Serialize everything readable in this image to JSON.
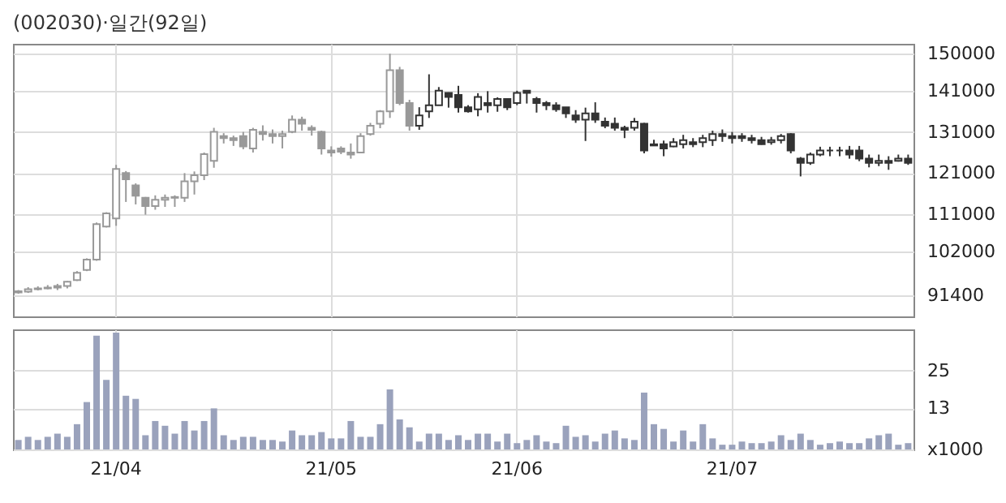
{
  "chart_data": [
    {
      "type": "candlestick",
      "title": "(002030)·일간(92일)",
      "categories": [
        null,
        null,
        null,
        null,
        null,
        null,
        null,
        null,
        null,
        null,
        null,
        null,
        null,
        null,
        null,
        null,
        null,
        null,
        null,
        null,
        null,
        null,
        null,
        null,
        null,
        null,
        null,
        null,
        null,
        null,
        null,
        null,
        null,
        null,
        null,
        null,
        null,
        null,
        null,
        null,
        null,
        null,
        null,
        null,
        null,
        null,
        null,
        null,
        null,
        null,
        null,
        null,
        null,
        null,
        null,
        null,
        null,
        null,
        null,
        null,
        null,
        null,
        null,
        null,
        null,
        null,
        null,
        null,
        null,
        null,
        null,
        null,
        null,
        null,
        null,
        null,
        null,
        null,
        null,
        null,
        null,
        null,
        null,
        null,
        null,
        null,
        null,
        null,
        null,
        null,
        null,
        null
      ],
      "ohlc": [
        [
          92000,
          92600,
          91700,
          92300
        ],
        [
          92200,
          93300,
          91900,
          92800
        ],
        [
          92800,
          93500,
          92500,
          93000
        ],
        [
          93000,
          93800,
          92800,
          93200
        ],
        [
          93200,
          94100,
          92600,
          93600
        ],
        [
          93600,
          94800,
          93000,
          94600
        ],
        [
          95000,
          97200,
          94800,
          96800
        ],
        [
          97500,
          100300,
          97200,
          100000
        ],
        [
          100000,
          109000,
          99700,
          108600
        ],
        [
          108000,
          111500,
          107800,
          111200
        ],
        [
          110000,
          123000,
          108200,
          122000
        ],
        [
          121000,
          121500,
          114000,
          119500
        ],
        [
          118000,
          118500,
          113400,
          115500
        ],
        [
          115000,
          115200,
          110900,
          113000
        ],
        [
          113000,
          115600,
          112100,
          114500
        ],
        [
          114500,
          115800,
          112800,
          115000
        ],
        [
          115000,
          115600,
          112800,
          115200
        ],
        [
          115000,
          121000,
          114000,
          119000
        ],
        [
          119000,
          121400,
          115800,
          120500
        ],
        [
          120500,
          126000,
          119300,
          125600
        ],
        [
          124000,
          132000,
          122300,
          131000
        ],
        [
          130000,
          130700,
          128200,
          129500
        ],
        [
          129500,
          130100,
          127600,
          129000
        ],
        [
          130000,
          131000,
          126800,
          127500
        ],
        [
          127000,
          132000,
          126000,
          131500
        ],
        [
          131000,
          132600,
          128900,
          130500
        ],
        [
          130500,
          131600,
          128200,
          130000
        ],
        [
          130000,
          131300,
          127000,
          130500
        ],
        [
          131000,
          135000,
          130700,
          134000
        ],
        [
          134000,
          134700,
          131300,
          133000
        ],
        [
          132000,
          132600,
          130100,
          131500
        ],
        [
          131000,
          131300,
          125500,
          127000
        ],
        [
          126500,
          127500,
          125000,
          126000
        ],
        [
          127000,
          127500,
          125600,
          126200
        ],
        [
          126000,
          128200,
          124500,
          125500
        ],
        [
          126000,
          130700,
          126000,
          130000
        ],
        [
          130500,
          133200,
          130100,
          132500
        ],
        [
          133000,
          136300,
          131900,
          136000
        ],
        [
          136000,
          150000,
          134400,
          146000
        ],
        [
          146000,
          146800,
          137500,
          138000
        ],
        [
          138000,
          138800,
          131300,
          132500
        ],
        [
          132500,
          137000,
          131500,
          135000
        ],
        [
          136000,
          145000,
          134400,
          137500
        ],
        [
          137500,
          141900,
          137500,
          141000
        ],
        [
          140500,
          140600,
          136900,
          139500
        ],
        [
          140000,
          142200,
          135700,
          137000
        ],
        [
          137000,
          137500,
          135700,
          136000
        ],
        [
          136500,
          140400,
          134800,
          139500
        ],
        [
          138000,
          140900,
          135700,
          137500
        ],
        [
          137500,
          139400,
          135900,
          139000
        ],
        [
          139000,
          139100,
          136300,
          137000
        ],
        [
          138000,
          141000,
          137500,
          140500
        ],
        [
          141000,
          141000,
          137900,
          140500
        ],
        [
          139000,
          139500,
          135700,
          138000
        ],
        [
          138000,
          138500,
          136300,
          137500
        ],
        [
          137500,
          138200,
          135900,
          136500
        ],
        [
          137000,
          137000,
          134400,
          135500
        ],
        [
          135000,
          136300,
          133200,
          134000
        ],
        [
          134000,
          136900,
          128800,
          135500
        ],
        [
          135500,
          138200,
          133200,
          134000
        ],
        [
          133500,
          134500,
          131900,
          132500
        ],
        [
          133000,
          134500,
          131300,
          132000
        ],
        [
          132000,
          132500,
          129500,
          131500
        ],
        [
          132000,
          134400,
          131300,
          133500
        ],
        [
          133000,
          133200,
          125800,
          126500
        ],
        [
          127700,
          129100,
          127600,
          128000
        ],
        [
          128000,
          128900,
          125100,
          127000
        ],
        [
          127500,
          129500,
          127300,
          128500
        ],
        [
          128000,
          130300,
          127000,
          129000
        ],
        [
          128500,
          129500,
          127300,
          128000
        ],
        [
          128500,
          130300,
          127300,
          129500
        ],
        [
          129000,
          131300,
          127600,
          130500
        ],
        [
          130500,
          131600,
          128600,
          130000
        ],
        [
          130000,
          131000,
          128200,
          129500
        ],
        [
          130000,
          130700,
          128600,
          129500
        ],
        [
          129500,
          130300,
          128200,
          129000
        ],
        [
          129000,
          129800,
          127900,
          128000
        ],
        [
          128500,
          129800,
          127900,
          129000
        ],
        [
          129000,
          130500,
          128200,
          130000
        ],
        [
          130500,
          130700,
          125800,
          126500
        ],
        [
          124500,
          124900,
          120200,
          123500
        ],
        [
          123500,
          126000,
          123000,
          125500
        ],
        [
          125500,
          127400,
          125100,
          126500
        ],
        [
          126500,
          127400,
          125100,
          126500
        ],
        [
          126500,
          127400,
          125100,
          126500
        ],
        [
          126500,
          127600,
          124500,
          125500
        ],
        [
          126500,
          127600,
          123900,
          124500
        ],
        [
          124500,
          125500,
          122400,
          123500
        ],
        [
          123500,
          125500,
          122700,
          124000
        ],
        [
          124000,
          125100,
          121800,
          123500
        ],
        [
          124000,
          125500,
          123800,
          124500
        ],
        [
          124500,
          125500,
          123000,
          123500
        ]
      ],
      "colors": [
        "#999999",
        "#999999",
        "#999999",
        "#999999",
        "#999999",
        "#999999",
        "#999999",
        "#999999",
        "#999999",
        "#999999",
        "#999999",
        "#999999",
        "#999999",
        "#999999",
        "#999999",
        "#999999",
        "#999999",
        "#999999",
        "#999999",
        "#999999",
        "#999999",
        "#999999",
        "#999999",
        "#999999",
        "#999999",
        "#999999",
        "#999999",
        "#999999",
        "#999999",
        "#999999",
        "#999999",
        "#999999",
        "#999999",
        "#999999",
        "#999999",
        "#999999",
        "#999999",
        "#999999",
        "#999999",
        "#999999",
        "#999999",
        "#333333",
        "#333333",
        "#333333",
        "#333333",
        "#333333",
        "#333333",
        "#333333",
        "#333333",
        "#333333",
        "#333333",
        "#333333",
        "#333333",
        "#333333",
        "#333333",
        "#333333",
        "#333333",
        "#333333",
        "#333333",
        "#333333",
        "#333333",
        "#333333",
        "#333333",
        "#333333",
        "#333333",
        "#333333",
        "#333333",
        "#333333",
        "#333333",
        "#333333",
        "#333333",
        "#333333",
        "#333333",
        "#333333",
        "#333333",
        "#333333",
        "#333333",
        "#333333",
        "#333333",
        "#333333",
        "#333333",
        "#333333",
        "#333333",
        "#333333",
        "#333333",
        "#333333",
        "#333333",
        "#333333",
        "#333333",
        "#333333",
        "#333333",
        "#333333"
      ],
      "ylim": [
        86200,
        152400
      ],
      "yticks": [
        91400,
        102000,
        111000,
        121000,
        131000,
        141000,
        150000
      ],
      "grid": true,
      "tick_labels": "y"
    },
    {
      "type": "bar",
      "categories": [
        null,
        null,
        null,
        null,
        null,
        null,
        null,
        null,
        null,
        null,
        "21/04",
        null,
        null,
        null,
        null,
        null,
        null,
        null,
        null,
        null,
        null,
        null,
        null,
        null,
        null,
        null,
        null,
        null,
        null,
        null,
        null,
        null,
        "21/05",
        null,
        null,
        null,
        null,
        null,
        null,
        null,
        null,
        null,
        null,
        null,
        null,
        null,
        null,
        null,
        null,
        null,
        null,
        "21/06",
        null,
        null,
        null,
        null,
        null,
        null,
        null,
        null,
        null,
        null,
        null,
        null,
        null,
        null,
        null,
        null,
        null,
        null,
        null,
        null,
        null,
        "21/07",
        null,
        null,
        null,
        null,
        null,
        null,
        null,
        null,
        null,
        null,
        null,
        null,
        null,
        null,
        null,
        null,
        null,
        null
      ],
      "values": [
        3,
        4,
        3,
        4,
        5,
        4,
        8,
        15,
        36,
        22,
        37,
        17,
        16,
        4.5,
        9,
        7.5,
        5,
        9,
        6,
        9,
        13,
        4.5,
        3,
        4,
        4,
        3,
        3,
        2.5,
        6,
        4.5,
        4.5,
        5.5,
        3.5,
        3.5,
        9,
        4,
        4,
        8,
        19,
        9.5,
        7,
        2.5,
        5,
        5,
        3,
        4.5,
        3,
        5,
        5,
        2.5,
        5,
        2,
        3,
        4.5,
        2.5,
        2,
        7.5,
        4,
        4.5,
        2.5,
        5,
        6,
        3.5,
        3,
        18,
        8,
        6.5,
        2.5,
        6,
        2.5,
        8,
        3.5,
        1.5,
        1.5,
        2.5,
        2,
        2,
        2.5,
        4.5,
        3,
        5,
        3,
        1.5,
        2,
        2.5,
        2,
        2,
        3.5,
        4.5,
        5,
        1.5,
        2
      ],
      "color": "#9aa2bc",
      "ylim": [
        0,
        38
      ],
      "yticks": [
        {
          "value": 0,
          "label": "x1000"
        },
        13,
        25
      ],
      "grid": true
    }
  ]
}
